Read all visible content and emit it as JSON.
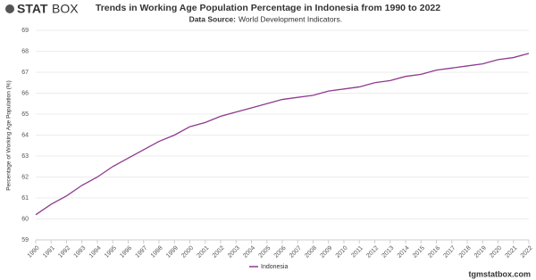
{
  "brand": {
    "logo_a": "STAT",
    "logo_b": "BOX"
  },
  "footer": "tgmstatbox.com",
  "chart_data": {
    "type": "line",
    "title": "Trends in Working Age Population Percentage in Indonesia from 1990 to 2022",
    "subtitle_label": "Data Source:",
    "subtitle_text": "World Development Indicators.",
    "y_label": "Percentage of Working Age Population (%)",
    "x": [
      1990,
      1991,
      1992,
      1993,
      1994,
      1995,
      1996,
      1997,
      1998,
      1999,
      2000,
      2001,
      2002,
      2003,
      2004,
      2005,
      2006,
      2007,
      2008,
      2009,
      2010,
      2011,
      2012,
      2013,
      2014,
      2015,
      2016,
      2017,
      2018,
      2019,
      2020,
      2021,
      2022
    ],
    "xlim": [
      1990,
      2022
    ],
    "series": [
      {
        "name": "Indonesia",
        "color": "#8e3a8e",
        "values": [
          60.2,
          60.7,
          61.1,
          61.6,
          62.0,
          62.5,
          62.9,
          63.3,
          63.7,
          64.0,
          64.4,
          64.6,
          64.9,
          65.1,
          65.3,
          65.5,
          65.7,
          65.8,
          65.9,
          66.1,
          66.2,
          66.3,
          66.5,
          66.6,
          66.8,
          66.9,
          67.1,
          67.2,
          67.3,
          67.4,
          67.6,
          67.7,
          67.9
        ]
      }
    ],
    "ylim": [
      59,
      69
    ],
    "yticks": [
      59,
      60,
      61,
      62,
      63,
      64,
      65,
      66,
      67,
      68,
      69
    ],
    "grid": true,
    "legend": "bottom"
  }
}
